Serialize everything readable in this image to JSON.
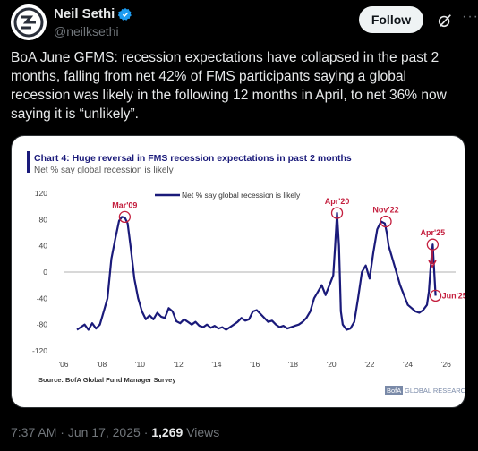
{
  "author": {
    "display_name": "Neil Sethi",
    "handle": "@neilksethi",
    "avatar_icon": "avatar-logo-icon",
    "verified_color": "#1d9bf0"
  },
  "actions": {
    "follow_label": "Follow"
  },
  "tweet": {
    "text": "BoA June GFMS: recession expectations have collapsed in the past 2 months, falling from net 42% of  FMS participants saying a global recession was likely in the following 12 months in April, to net 36% now saying it is “unlikely”."
  },
  "meta": {
    "time": "7:37 AM",
    "date": "Jun 17, 2025",
    "views_count": "1,269",
    "views_label": "Views",
    "separator": "·"
  },
  "chart_data": {
    "type": "line",
    "title": "Chart 4: Huge reversal in FMS recession expectations in past 2 months",
    "subtitle": "Net % say global recession is likely",
    "legend": "Net % say global recession is likely",
    "legend_position": "top",
    "source": "Source: BofA Global Fund Manager Survey",
    "brand_box": "BofA",
    "brand_text": "GLOBAL RESEARCH",
    "accent_color": "#c41f3e",
    "line_color": "#1a1a7a",
    "ylim": [
      -120,
      120
    ],
    "yticks": [
      "120",
      "80",
      "40",
      "0",
      "-40",
      "-80",
      "-120"
    ],
    "xlim": [
      2006,
      2026.5
    ],
    "xticks": [
      "'06",
      "'08",
      "'10",
      "'12",
      "'14",
      "'16",
      "'18",
      "'20",
      "'22",
      "'24",
      "'26"
    ],
    "annotations": [
      {
        "label": "Mar'09",
        "x": 2009.2,
        "y": 84
      },
      {
        "label": "Apr'20",
        "x": 2020.3,
        "y": 90
      },
      {
        "label": "Nov'22",
        "x": 2022.85,
        "y": 77
      },
      {
        "label": "Apr'25",
        "x": 2025.3,
        "y": 42
      },
      {
        "label": "Jun'25",
        "x": 2025.45,
        "y": -36
      }
    ],
    "series": [
      {
        "x": [
          2006.7,
          2006.9,
          2007.1,
          2007.3,
          2007.5,
          2007.7,
          2007.9,
          2008.1,
          2008.3,
          2008.5,
          2008.7,
          2008.9,
          2009.05,
          2009.2,
          2009.35,
          2009.5,
          2009.7,
          2009.9,
          2010.1,
          2010.3,
          2010.5,
          2010.7,
          2010.9,
          2011.1,
          2011.3,
          2011.5,
          2011.7,
          2011.9,
          2012.1,
          2012.3,
          2012.5,
          2012.7,
          2012.9,
          2013.1,
          2013.3,
          2013.5,
          2013.7,
          2013.9,
          2014.1,
          2014.3,
          2014.5,
          2014.7,
          2014.9,
          2015.1,
          2015.3,
          2015.5,
          2015.7,
          2015.9,
          2016.1,
          2016.3,
          2016.5,
          2016.7,
          2016.9,
          2017.1,
          2017.3,
          2017.5,
          2017.7,
          2017.9,
          2018.1,
          2018.3,
          2018.5,
          2018.7,
          2018.9,
          2019.1,
          2019.3,
          2019.5,
          2019.7,
          2019.9,
          2020.1,
          2020.2,
          2020.3,
          2020.4,
          2020.5,
          2020.6,
          2020.8,
          2021.0,
          2021.2,
          2021.4,
          2021.6,
          2021.8,
          2022.0,
          2022.2,
          2022.4,
          2022.6,
          2022.8,
          2022.9,
          2023.0,
          2023.2,
          2023.4,
          2023.6,
          2023.8,
          2024.0,
          2024.2,
          2024.4,
          2024.6,
          2024.8,
          2025.0,
          2025.1,
          2025.2,
          2025.3,
          2025.37,
          2025.45
        ],
        "values": [
          -88,
          -84,
          -80,
          -88,
          -78,
          -86,
          -80,
          -60,
          -40,
          20,
          50,
          78,
          84,
          83,
          74,
          40,
          -10,
          -40,
          -60,
          -72,
          -66,
          -72,
          -62,
          -68,
          -70,
          -55,
          -60,
          -75,
          -78,
          -72,
          -76,
          -80,
          -76,
          -82,
          -84,
          -80,
          -85,
          -82,
          -86,
          -84,
          -88,
          -84,
          -80,
          -76,
          -70,
          -74,
          -72,
          -60,
          -58,
          -64,
          -70,
          -76,
          -74,
          -80,
          -84,
          -82,
          -86,
          -84,
          -82,
          -80,
          -76,
          -70,
          -60,
          -40,
          -30,
          -20,
          -35,
          -20,
          -5,
          40,
          90,
          40,
          -60,
          -80,
          -88,
          -86,
          -76,
          -40,
          0,
          10,
          -10,
          30,
          65,
          77,
          74,
          60,
          40,
          20,
          0,
          -20,
          -35,
          -50,
          -55,
          -60,
          -62,
          -58,
          -50,
          -30,
          10,
          42,
          5,
          -36
        ]
      }
    ]
  }
}
